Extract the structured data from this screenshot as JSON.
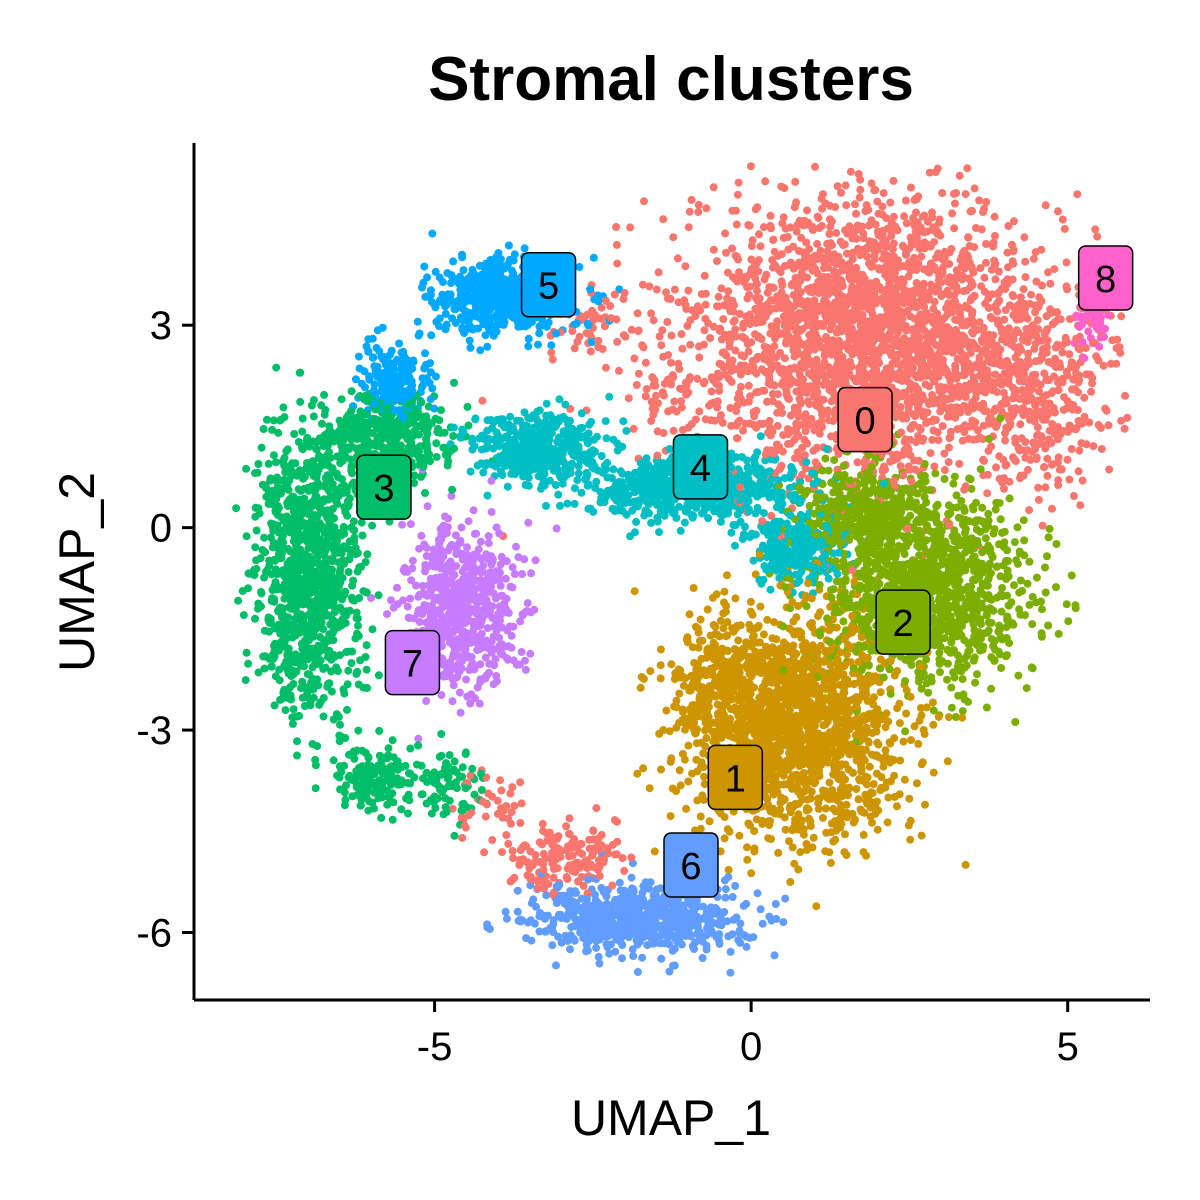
{
  "chart_data": {
    "type": "scatter",
    "title": "Stromal clusters",
    "xlabel": "UMAP_1",
    "ylabel": "UMAP_2",
    "xlim": [
      -8.8,
      6.3
    ],
    "ylim": [
      -7.0,
      5.7
    ],
    "xticks": [
      -5,
      0,
      5
    ],
    "yticks": [
      -6,
      -3,
      0,
      3
    ],
    "grid": false,
    "legend": "none",
    "clusters": [
      {
        "label": "0",
        "color": "#F8766D",
        "center": [
          1.8,
          1.6
        ],
        "blobs": [
          [
            1.9,
            2.8,
            2.7,
            1.9,
            2600
          ],
          [
            4.5,
            2.0,
            1.0,
            1.4,
            300
          ],
          [
            -1.3,
            2.0,
            0.4,
            0.4,
            30
          ],
          [
            -2.6,
            3.0,
            0.5,
            0.5,
            40
          ],
          [
            -3.0,
            -4.9,
            0.8,
            0.45,
            160
          ],
          [
            -4.2,
            -4.1,
            0.6,
            0.4,
            40
          ]
        ]
      },
      {
        "label": "1",
        "color": "#CD9600",
        "center": [
          -0.25,
          -3.7
        ],
        "blobs": [
          [
            0.7,
            -2.9,
            1.55,
            1.45,
            1700
          ],
          [
            -0.6,
            -2.3,
            0.6,
            0.8,
            150
          ]
        ]
      },
      {
        "label": "2",
        "color": "#7CAE00",
        "center": [
          2.4,
          -1.4
        ],
        "blobs": [
          [
            2.7,
            -0.9,
            1.5,
            1.3,
            1200
          ],
          [
            1.7,
            0.3,
            0.9,
            0.6,
            300
          ]
        ]
      },
      {
        "label": "3",
        "color": "#00BE67",
        "center": [
          -5.8,
          0.6
        ],
        "blobs": [
          [
            -7.0,
            -0.6,
            0.75,
            1.8,
            1000
          ],
          [
            -5.8,
            1.3,
            1.0,
            0.6,
            400
          ],
          [
            -6.0,
            -3.7,
            0.6,
            0.45,
            150
          ],
          [
            -4.8,
            -3.8,
            0.45,
            0.5,
            80
          ]
        ]
      },
      {
        "label": "4",
        "color": "#00BFC4",
        "center": [
          -0.8,
          0.9
        ],
        "blobs": [
          [
            -3.4,
            1.2,
            1.0,
            0.45,
            420
          ],
          [
            -1.0,
            0.6,
            1.5,
            0.45,
            700
          ],
          [
            0.7,
            -0.3,
            0.7,
            0.45,
            280
          ]
        ]
      },
      {
        "label": "5",
        "color": "#00A9FF",
        "center": [
          -3.2,
          3.6
        ],
        "blobs": [
          [
            -3.9,
            3.4,
            1.0,
            0.5,
            550
          ],
          [
            -5.6,
            2.2,
            0.55,
            0.5,
            200
          ]
        ]
      },
      {
        "label": "6",
        "color": "#619CFF",
        "center": [
          -0.95,
          -5.0
        ],
        "blobs": [
          [
            -1.8,
            -5.8,
            1.5,
            0.45,
            750
          ]
        ]
      },
      {
        "label": "7",
        "color": "#C77CFF",
        "center": [
          -5.35,
          -2.0
        ],
        "blobs": [
          [
            -4.6,
            -1.2,
            0.85,
            1.1,
            650
          ]
        ]
      },
      {
        "label": "8",
        "color": "#FF61CC",
        "center": [
          5.6,
          3.7
        ],
        "blobs": [
          [
            5.4,
            3.1,
            0.25,
            0.35,
            60
          ]
        ]
      }
    ]
  }
}
